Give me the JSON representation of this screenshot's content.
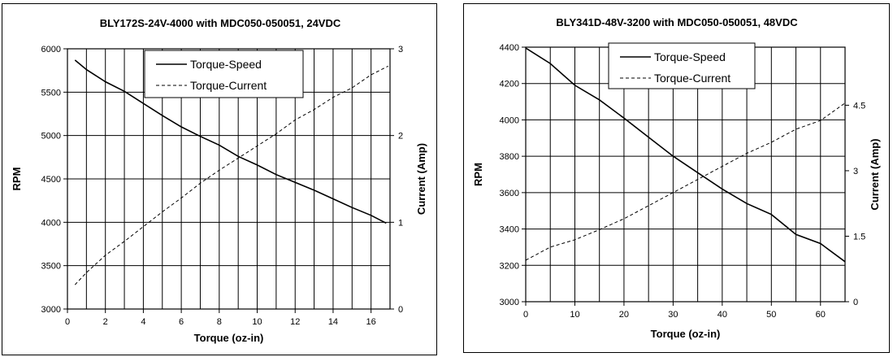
{
  "chart_data": [
    {
      "type": "line",
      "title": "BLY172S-24V-4000 with MDC050-050051, 24VDC",
      "xlabel": "Torque (oz-in)",
      "ylabel": "RPM",
      "y2label": "Current (Amp)",
      "xlim": [
        0,
        17
      ],
      "ylim": [
        3000,
        6000
      ],
      "y2lim": [
        0,
        3
      ],
      "x_ticks": [
        "0",
        "2",
        "4",
        "6",
        "8",
        "10",
        "12",
        "14",
        "16"
      ],
      "y_ticks": [
        "3000",
        "3500",
        "4000",
        "4500",
        "5000",
        "5500",
        "6000"
      ],
      "y2_ticks": [
        "0",
        "1",
        "2",
        "3"
      ],
      "grid": true,
      "legend": "top-center",
      "series": [
        {
          "name": "Torque-Speed",
          "axis": "left",
          "style": "solid",
          "points": [
            [
              0.4,
              5870
            ],
            [
              1,
              5760
            ],
            [
              2,
              5620
            ],
            [
              3,
              5510
            ],
            [
              4,
              5370
            ],
            [
              5,
              5230
            ],
            [
              6,
              5100
            ],
            [
              7,
              4990
            ],
            [
              8,
              4890
            ],
            [
              9,
              4760
            ],
            [
              10,
              4660
            ],
            [
              11,
              4550
            ],
            [
              12,
              4460
            ],
            [
              13,
              4370
            ],
            [
              14,
              4270
            ],
            [
              15,
              4170
            ],
            [
              16,
              4080
            ],
            [
              16.8,
              3990
            ]
          ]
        },
        {
          "name": "Torque-Current",
          "axis": "right",
          "style": "dashed",
          "points": [
            [
              0.4,
              0.28
            ],
            [
              1,
              0.42
            ],
            [
              2,
              0.62
            ],
            [
              3,
              0.78
            ],
            [
              4,
              0.95
            ],
            [
              5,
              1.12
            ],
            [
              6,
              1.28
            ],
            [
              7,
              1.45
            ],
            [
              8,
              1.6
            ],
            [
              9,
              1.74
            ],
            [
              10,
              1.88
            ],
            [
              11,
              2.02
            ],
            [
              12,
              2.18
            ],
            [
              13,
              2.3
            ],
            [
              14,
              2.44
            ],
            [
              15,
              2.55
            ],
            [
              16,
              2.7
            ],
            [
              16.9,
              2.8
            ]
          ]
        }
      ]
    },
    {
      "type": "line",
      "title": "BLY341D-48V-3200 with MDC050-050051, 48VDC",
      "xlabel": "Torque (oz-in)",
      "ylabel": "RPM",
      "y2label": "Current (Amp)",
      "xlim": [
        0,
        65
      ],
      "ylim": [
        3000,
        4400
      ],
      "y2lim": [
        0,
        5.83
      ],
      "x_ticks": [
        "0",
        "10",
        "20",
        "30",
        "40",
        "50",
        "60"
      ],
      "y_ticks": [
        "3000",
        "3200",
        "3400",
        "3600",
        "3800",
        "4000",
        "4200",
        "4400"
      ],
      "y2_ticks": [
        "0",
        "1.5",
        "3",
        "4.5"
      ],
      "grid": true,
      "legend": "top-center",
      "series": [
        {
          "name": "Torque-Speed",
          "axis": "left",
          "style": "solid",
          "points": [
            [
              0,
              4395
            ],
            [
              5,
              4310
            ],
            [
              10,
              4190
            ],
            [
              15,
              4110
            ],
            [
              20,
              4010
            ],
            [
              25,
              3905
            ],
            [
              30,
              3800
            ],
            [
              35,
              3710
            ],
            [
              40,
              3620
            ],
            [
              45,
              3540
            ],
            [
              50,
              3480
            ],
            [
              55,
              3370
            ],
            [
              60,
              3320
            ],
            [
              65,
              3220
            ]
          ]
        },
        {
          "name": "Torque-Current",
          "axis": "right",
          "style": "dashed",
          "points": [
            [
              0,
              0.95
            ],
            [
              5,
              1.25
            ],
            [
              10,
              1.42
            ],
            [
              15,
              1.65
            ],
            [
              20,
              1.9
            ],
            [
              25,
              2.2
            ],
            [
              30,
              2.5
            ],
            [
              35,
              2.8
            ],
            [
              40,
              3.1
            ],
            [
              45,
              3.4
            ],
            [
              50,
              3.65
            ],
            [
              55,
              3.95
            ],
            [
              60,
              4.15
            ],
            [
              65,
              4.55
            ]
          ]
        }
      ]
    }
  ]
}
